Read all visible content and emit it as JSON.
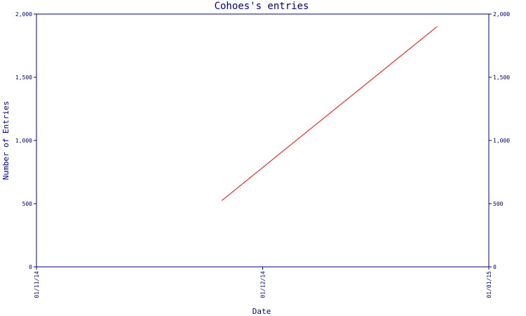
{
  "chart_data": {
    "type": "line",
    "title": "Cohoes's entries",
    "xlabel": "Date",
    "ylabel": "Number of Entries",
    "x_ticks": [
      "01/11/14",
      "01/12/14",
      "01/01/15"
    ],
    "x_range": [
      "2014-11-01",
      "2015-01-01"
    ],
    "y_ticks": [
      "0",
      "500",
      "1,000",
      "1,500",
      "2,000"
    ],
    "ylim": [
      0,
      2000
    ],
    "grid": false,
    "legend": "none",
    "series": [
      {
        "x": [
          "2014-11-26",
          "2014-12-25"
        ],
        "y": [
          525,
          1900
        ],
        "color": "#ff0000"
      }
    ],
    "colors": {
      "axis": "#000080",
      "text": "#000080",
      "line": "#ff0000"
    }
  }
}
